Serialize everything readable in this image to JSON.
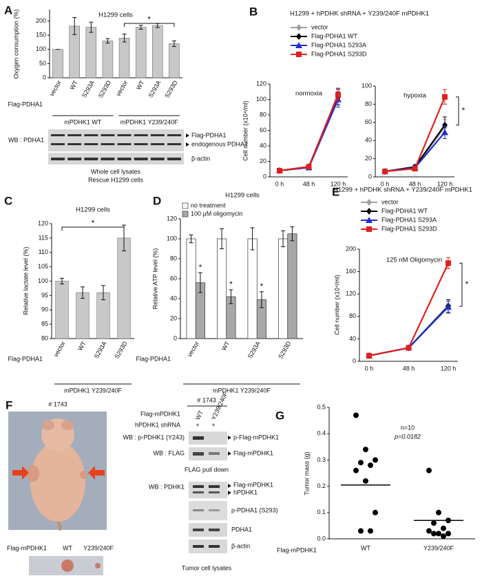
{
  "figure": {
    "panel_labels": [
      "A",
      "B",
      "C",
      "D",
      "E",
      "F",
      "G"
    ]
  },
  "chart_data": [
    {
      "type": "bar",
      "title": "H1299 cells",
      "ylabel": "Oxygen consumption (%)",
      "row_label": "Flag-PDHA1",
      "categories": [
        "vector",
        "WT",
        "S293A",
        "S293D",
        "vector",
        "WT",
        "S293A",
        "S293D"
      ],
      "values": [
        100,
        182,
        178,
        130,
        140,
        178,
        184,
        120
      ],
      "errors": [
        0,
        30,
        18,
        8,
        14,
        7,
        7,
        10
      ],
      "color": "#c8c8c8",
      "ylim": [
        0,
        240
      ],
      "yticks": [
        0,
        50,
        100,
        150,
        200
      ],
      "groups": [
        "mPDHK1 WT",
        "mPDHK1 Y239/240F"
      ],
      "annotation": "*"
    },
    {
      "type": "line",
      "title": "H1299 + hPDHK shRNA + Y239/240F mPDHK1",
      "ylabel": "Cell number (x10⁴/ml)",
      "categories": [
        "0 h",
        "48 h",
        "120 h"
      ],
      "series": [
        {
          "name": "vector",
          "color": "#a0a0a0"
        },
        {
          "name": "Flag-PDHA1 WT",
          "color": "#000000"
        },
        {
          "name": "Flag-PDHA1 S293A",
          "color": "#1f2fd0"
        },
        {
          "name": "Flag-PDHA1 S293D",
          "color": "#e0201e"
        }
      ],
      "panels": [
        {
          "subtitle": "normoxia",
          "ylim": [
            0,
            120
          ],
          "yticks": [
            0,
            20,
            40,
            60,
            80,
            100,
            120
          ],
          "values": [
            [
              8,
              13,
              107
            ],
            [
              8,
              13,
              103
            ],
            [
              8,
              12,
              100
            ],
            [
              8,
              13,
              106
            ]
          ],
          "errors": [
            [
              1,
              1,
              8
            ],
            [
              1,
              1,
              10
            ],
            [
              1,
              1,
              10
            ],
            [
              1,
              1,
              8
            ]
          ]
        },
        {
          "subtitle": "hypoxia",
          "ylim": [
            0,
            100
          ],
          "yticks": [
            0,
            20,
            40,
            60,
            80,
            100
          ],
          "values": [
            [
              6,
              10,
              55
            ],
            [
              6,
              11,
              57
            ],
            [
              6,
              10,
              49
            ],
            [
              6,
              9,
              88
            ]
          ],
          "errors": [
            [
              1,
              1,
              8
            ],
            [
              1,
              2,
              9
            ],
            [
              1,
              2,
              7
            ],
            [
              1,
              2,
              8
            ]
          ]
        }
      ],
      "annotation": "*"
    },
    {
      "type": "bar",
      "title": "H1299 cells",
      "ylabel": "Relative lactate level (%)",
      "row_label": "Flag-PDHA1",
      "categories": [
        "vector",
        "WT",
        "S293A",
        "S293D"
      ],
      "values": [
        100,
        96,
        96,
        115
      ],
      "errors": [
        1,
        2,
        2.5,
        4.5
      ],
      "color": "#c8c8c8",
      "ylim": [
        80,
        120
      ],
      "yticks": [
        80,
        85,
        90,
        95,
        100,
        105,
        110,
        115,
        120
      ],
      "groups": [
        "mPDHK1 Y239/240F"
      ],
      "annotation": "*"
    },
    {
      "type": "grouped_bar",
      "title": "H1299 cells",
      "ylabel": "Relative ATP level (%)",
      "row_label": "Flag-PDHA1",
      "categories": [
        "vector",
        "WT",
        "S293A",
        "S293D"
      ],
      "series": [
        {
          "name": "no treatment",
          "color": "#ffffff",
          "values": [
            100,
            100,
            100,
            100
          ],
          "errors": [
            4,
            10,
            11,
            8
          ]
        },
        {
          "name": "100 μM oligomycin",
          "color": "#a8a8a8",
          "values": [
            56,
            42,
            39,
            105
          ],
          "errors": [
            10,
            7,
            8,
            7
          ]
        }
      ],
      "ylim": [
        0,
        120
      ],
      "yticks": [
        0,
        20,
        40,
        60,
        80,
        100,
        120
      ],
      "groups": [
        "mPDHK1 Y239/240F"
      ],
      "annotation": "*"
    },
    {
      "type": "line",
      "title": "H1299 + hPDHK shRNA + Y239/240F mPDHK1",
      "ylabel": "Cell number (x10⁴/ml)",
      "categories": [
        "0 h",
        "48 h",
        "120 h"
      ],
      "series": [
        {
          "name": "vector",
          "color": "#a0a0a0"
        },
        {
          "name": "Flag-PDHA1 WT",
          "color": "#000000"
        },
        {
          "name": "Flag-PDHA1 S293A",
          "color": "#1f2fd0"
        },
        {
          "name": "Flag-PDHA1 S293D",
          "color": "#e0201e"
        }
      ],
      "panels": [
        {
          "subtitle": "125 nM Oligomycin",
          "ylim": [
            0,
            200
          ],
          "yticks": [
            0,
            40,
            80,
            120,
            160,
            200
          ],
          "values": [
            [
              10,
              24,
              100
            ],
            [
              10,
              24,
              98
            ],
            [
              10,
              24,
              97
            ],
            [
              10,
              24,
              175
            ]
          ],
          "errors": [
            [
              2,
              2,
              10
            ],
            [
              2,
              2,
              12
            ],
            [
              2,
              2,
              10
            ],
            [
              2,
              2,
              10
            ]
          ]
        }
      ],
      "annotation": "*"
    },
    {
      "type": "dot",
      "ylabel": "Tumor mass (g)",
      "row_label": "Flag-mPDHK1",
      "categories": [
        "WT",
        "Y239/240F"
      ],
      "values": [
        [
          0.47,
          0.34,
          0.3,
          0.29,
          0.28,
          0.26,
          0.22,
          0.1,
          0.03,
          0.03
        ],
        [
          0.26,
          0.1,
          0.07,
          0.06,
          0.04,
          0.03,
          0.02,
          0.02,
          0.02,
          0.01
        ]
      ],
      "means": [
        0.205,
        0.07
      ],
      "color": "#000000",
      "ylim": [
        0,
        0.5
      ],
      "yticks": [
        {
          "value": 0,
          "label": "0.0"
        },
        0.1,
        0.2,
        0.3,
        0.4,
        0.5
      ],
      "annotations": [
        "n=10",
        "p=0.0182"
      ]
    }
  ],
  "panel_A_blot": {
    "probe": "WB : PDHA1",
    "bands": [
      "Flag-PDHA1",
      "endogenous PDHA1",
      "β-actin"
    ],
    "caption": [
      "Whole cell lysates",
      "Rescue H1299 cells"
    ]
  },
  "panel_F": {
    "photo": {
      "id": "# 1743",
      "row_label": "Flag-mPDHK1",
      "lanes": [
        "WT",
        "Y239/240F"
      ]
    },
    "blot": {
      "id": "# 1743",
      "row_label": "Flag-mPDHK1",
      "lanes": [
        "WT",
        "Y239/240F"
      ],
      "shrna_label": "hPDHK1 shRNA",
      "shrna": [
        "+",
        "+"
      ],
      "pulldown": {
        "rows": [
          {
            "probe": "WB : p-PDHK1 (Y243)",
            "band": "p-Flag-mPDHK1"
          },
          {
            "probe": "WB : FLAG",
            "band": "Flag-mPDHK1"
          }
        ],
        "caption": "FLAG pull down"
      },
      "lysates": {
        "probe": "WB : PDHK1",
        "bands": [
          "Flag-mPDHK1",
          "hPDHK1"
        ],
        "rows": [
          "p-PDHA1 (S293)",
          "PDHA1",
          "β-actin"
        ],
        "caption": "Tumor cell lysates"
      }
    }
  }
}
